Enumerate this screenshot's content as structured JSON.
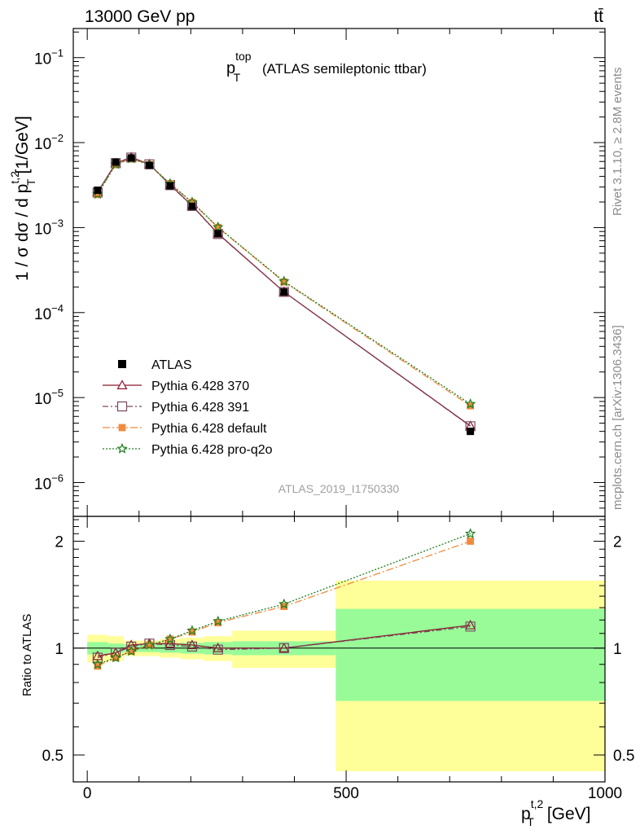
{
  "header": {
    "left": "13000 GeV pp",
    "right": "tt̄"
  },
  "side_text": {
    "rivet": "Rivet 3.1.10, ≥ 2.8M events",
    "mcplots": "mcplots.cern.ch [arXiv:1306.3436]"
  },
  "chart_data": {
    "type": "line",
    "title": {
      "main": "p",
      "sup": "top",
      "sub": "T",
      "rest": "(ATLAS semileptonic ttbar)"
    },
    "watermark": "ATLAS_2019_I1750330",
    "xlabel": {
      "main": "p",
      "sup": "t,2",
      "sub": "T",
      "unit": "[GeV]"
    },
    "ylabel": {
      "prefix": "1 / σ dσ / d p",
      "sup": "t,2",
      "sub": "T",
      "unit": "[1/GeV]"
    },
    "ratio_ylabel": "Ratio to ATLAS",
    "xlim": [
      -27,
      1000
    ],
    "ylim": [
      4e-07,
      0.22
    ],
    "yscale": "log",
    "ratio_ylim": [
      0.42,
      2.35
    ],
    "ratio_yscale": "log",
    "xticks": [
      0,
      500,
      1000
    ],
    "xtick_labels": [
      "0",
      "500",
      "1000"
    ],
    "yticks_main": [
      {
        "base": "10",
        "exp": "−1",
        "value": 0.1
      },
      {
        "base": "10",
        "exp": "−2",
        "value": 0.01
      },
      {
        "base": "10",
        "exp": "−3",
        "value": 0.001
      },
      {
        "base": "10",
        "exp": "−4",
        "value": 0.0001
      },
      {
        "base": "10",
        "exp": "−5",
        "value": 1e-05
      },
      {
        "base": "10",
        "exp": "−6",
        "value": 1e-06
      }
    ],
    "yticks_ratio": [
      {
        "label": "2",
        "value": 2
      },
      {
        "label": "1",
        "value": 1
      },
      {
        "label": "0.5",
        "value": 0.5
      }
    ],
    "bin_edges": [
      0,
      40,
      70,
      100,
      140,
      180,
      225,
      280,
      480,
      1000
    ],
    "x": [
      20,
      55,
      85,
      120,
      160,
      202.5,
      252.5,
      380,
      740
    ],
    "data": {
      "name": "ATLAS",
      "values": [
        0.00275,
        0.0059,
        0.0066,
        0.0054,
        0.0031,
        0.00178,
        0.00085,
        0.000175,
        4e-06
      ],
      "stat_band": [
        0.04,
        0.03,
        0.025,
        0.025,
        0.03,
        0.035,
        0.04,
        0.045,
        0.29
      ],
      "total_band": [
        0.09,
        0.08,
        0.05,
        0.05,
        0.06,
        0.07,
        0.08,
        0.12,
        0.55
      ]
    },
    "series": [
      {
        "name": "Pythia 6.428 370",
        "color": "#8b1a2b",
        "marker": "triangle",
        "dash": "",
        "ratio": [
          0.95,
          0.97,
          1.02,
          1.03,
          1.03,
          1.02,
          1.0,
          1.0,
          1.16
        ]
      },
      {
        "name": "Pythia 6.428 391",
        "color": "#7a4a62",
        "marker": "square",
        "dash": "7,3,2,3",
        "ratio": [
          0.94,
          0.97,
          1.01,
          1.03,
          1.02,
          1.01,
          0.99,
          1.0,
          1.15
        ]
      },
      {
        "name": "Pythia 6.428 default",
        "color": "#f08b3e",
        "marker": "filled-square",
        "dash": "9,3,2,3",
        "ratio": [
          0.89,
          0.94,
          0.98,
          1.02,
          1.06,
          1.11,
          1.18,
          1.31,
          2.0
        ]
      },
      {
        "name": "Pythia 6.428 pro-q2o",
        "color": "#1e7d1e",
        "marker": "star",
        "dash": "2,2",
        "ratio": [
          0.9,
          0.94,
          0.98,
          1.02,
          1.06,
          1.12,
          1.19,
          1.33,
          2.1
        ]
      }
    ],
    "legend_position": "middle-left",
    "colors": {
      "stat": "#98fb98",
      "total": "#ffff99"
    }
  }
}
